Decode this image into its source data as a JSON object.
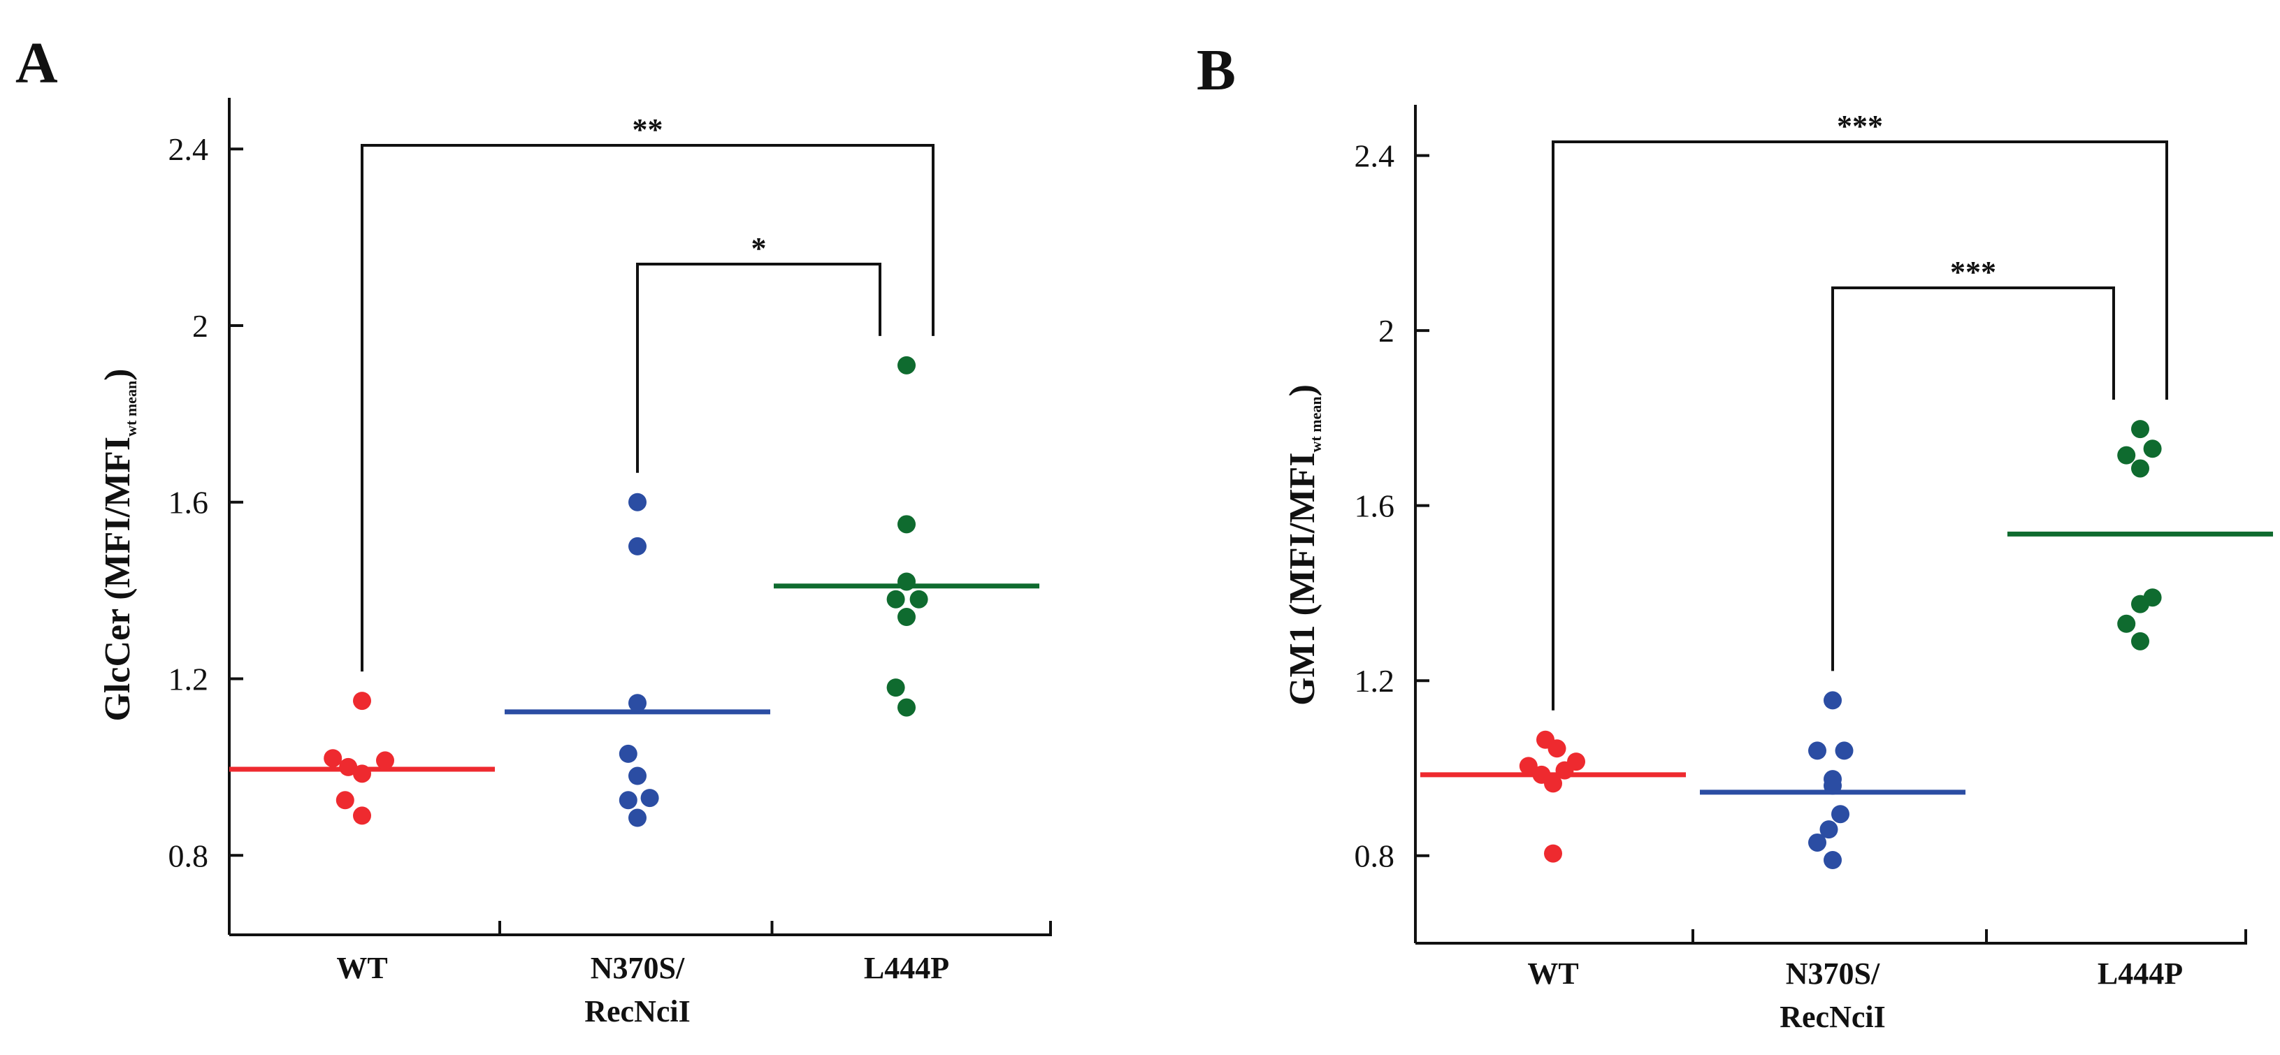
{
  "chart_data": [
    {
      "id": "A",
      "type": "scatter",
      "panel_label": "A",
      "ylabel_main": "GlcCer (MFI/MFI",
      "ylabel_sub": "wt mean",
      "ylabel_close": ")",
      "ylim": [
        0.62,
        2.5
      ],
      "yticks": [
        {
          "value": 0.8,
          "label": "0.8"
        },
        {
          "value": 1.2,
          "label": "1.2"
        },
        {
          "value": 1.6,
          "label": "1.6"
        },
        {
          "value": 2.0,
          "label": "2"
        },
        {
          "value": 2.4,
          "label": "2.4"
        }
      ],
      "categories": [
        {
          "label_lines": [
            "WT"
          ]
        },
        {
          "label_lines": [
            "N370S/",
            "RecNciI"
          ]
        },
        {
          "label_lines": [
            "L444P"
          ]
        }
      ],
      "series": [
        {
          "name": "WT",
          "color": "#ee2a2f",
          "mean": 0.995,
          "points": [
            [
              -0.38,
              1.02
            ],
            [
              -0.18,
              1.0
            ],
            [
              0.0,
              0.985
            ],
            [
              0.3,
              1.015
            ],
            [
              -0.22,
              0.925
            ],
            [
              0.0,
              0.89
            ],
            [
              0.0,
              1.15
            ]
          ]
        },
        {
          "name": "N370S/RecNciI",
          "color": "#2b4da3",
          "mean": 1.125,
          "points": [
            [
              0.0,
              1.6
            ],
            [
              0.0,
              1.5
            ],
            [
              0.0,
              1.145
            ],
            [
              -0.12,
              1.03
            ],
            [
              0.0,
              0.98
            ],
            [
              -0.12,
              0.925
            ],
            [
              0.16,
              0.93
            ],
            [
              0.0,
              0.885
            ]
          ]
        },
        {
          "name": "L444P",
          "color": "#0f6b2f",
          "mean": 1.41,
          "points": [
            [
              0.0,
              1.91
            ],
            [
              0.0,
              1.55
            ],
            [
              0.0,
              1.42
            ],
            [
              -0.14,
              1.38
            ],
            [
              0.16,
              1.38
            ],
            [
              0.0,
              1.34
            ],
            [
              -0.14,
              1.18
            ],
            [
              0.0,
              1.135
            ]
          ]
        }
      ],
      "comparisons": [
        {
          "from": 0,
          "to": 2,
          "label": "**"
        },
        {
          "from": 1,
          "to": 2,
          "label": "*"
        }
      ]
    },
    {
      "id": "B",
      "type": "scatter",
      "panel_label": "B",
      "ylabel_main": "GM1 (MFI/MFI",
      "ylabel_sub": "wt mean",
      "ylabel_close": ")",
      "ylim": [
        0.6,
        2.5
      ],
      "yticks": [
        {
          "value": 0.8,
          "label": "0.8"
        },
        {
          "value": 1.2,
          "label": "1.2"
        },
        {
          "value": 1.6,
          "label": "1.6"
        },
        {
          "value": 2.0,
          "label": "2"
        },
        {
          "value": 2.4,
          "label": "2.4"
        }
      ],
      "categories": [
        {
          "label_lines": [
            "WT"
          ]
        },
        {
          "label_lines": [
            "N370S/",
            "RecNciI"
          ]
        },
        {
          "label_lines": [
            "L444P"
          ]
        }
      ],
      "series": [
        {
          "name": "WT",
          "color": "#ee2a2f",
          "mean": 0.985,
          "points": [
            [
              -0.1,
              1.065
            ],
            [
              -0.32,
              1.005
            ],
            [
              0.05,
              1.045
            ],
            [
              0.3,
              1.015
            ],
            [
              0.15,
              0.995
            ],
            [
              -0.15,
              0.985
            ],
            [
              0.0,
              0.965
            ],
            [
              0.0,
              0.805
            ]
          ]
        },
        {
          "name": "N370S/RecNciI",
          "color": "#2b4da3",
          "mean": 0.945,
          "points": [
            [
              0.0,
              1.155
            ],
            [
              -0.2,
              1.04
            ],
            [
              0.15,
              1.04
            ],
            [
              0.0,
              0.975
            ],
            [
              0.0,
              0.96
            ],
            [
              0.1,
              0.895
            ],
            [
              -0.05,
              0.86
            ],
            [
              -0.2,
              0.83
            ],
            [
              0.0,
              0.79
            ]
          ]
        },
        {
          "name": "L444P",
          "color": "#0f6b2f",
          "mean": 1.535,
          "points": [
            [
              0.0,
              1.775
            ],
            [
              0.16,
              1.73
            ],
            [
              -0.18,
              1.715
            ],
            [
              0.0,
              1.685
            ],
            [
              0.16,
              1.39
            ],
            [
              0.0,
              1.375
            ],
            [
              -0.18,
              1.33
            ],
            [
              0.0,
              1.29
            ]
          ]
        }
      ],
      "comparisons": [
        {
          "from": 0,
          "to": 2,
          "label": "***"
        },
        {
          "from": 1,
          "to": 2,
          "label": "***"
        }
      ]
    }
  ]
}
